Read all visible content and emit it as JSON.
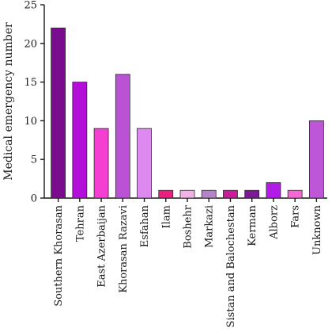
{
  "chart_data": {
    "type": "bar",
    "title": "",
    "xlabel": "",
    "ylabel": "Medical emergency number",
    "ylim": [
      0,
      25
    ],
    "yticks": [
      0,
      5,
      10,
      15,
      20,
      25
    ],
    "grid": false,
    "categories": [
      "Southern Khorasan",
      "Tehran",
      "East Azerbaijan",
      "Khorasan Razavi",
      "Esfahan",
      "Ilam",
      "Boshehr",
      "Markazi",
      "Sistan and Balochestan",
      "Kerman",
      "Alborz",
      "Fars",
      "Unknown"
    ],
    "values": [
      22,
      15,
      9,
      16,
      9,
      1,
      1,
      1,
      1,
      1,
      2,
      1,
      10
    ],
    "colors": [
      "#7a0c8e",
      "#b20fd9",
      "#f53fd2",
      "#bb52d6",
      "#de89ef",
      "#ea1f7e",
      "#f3b2e6",
      "#b784c8",
      "#c81c9a",
      "#7b1a92",
      "#b21ae6",
      "#f666d4",
      "#bd57d7"
    ]
  }
}
